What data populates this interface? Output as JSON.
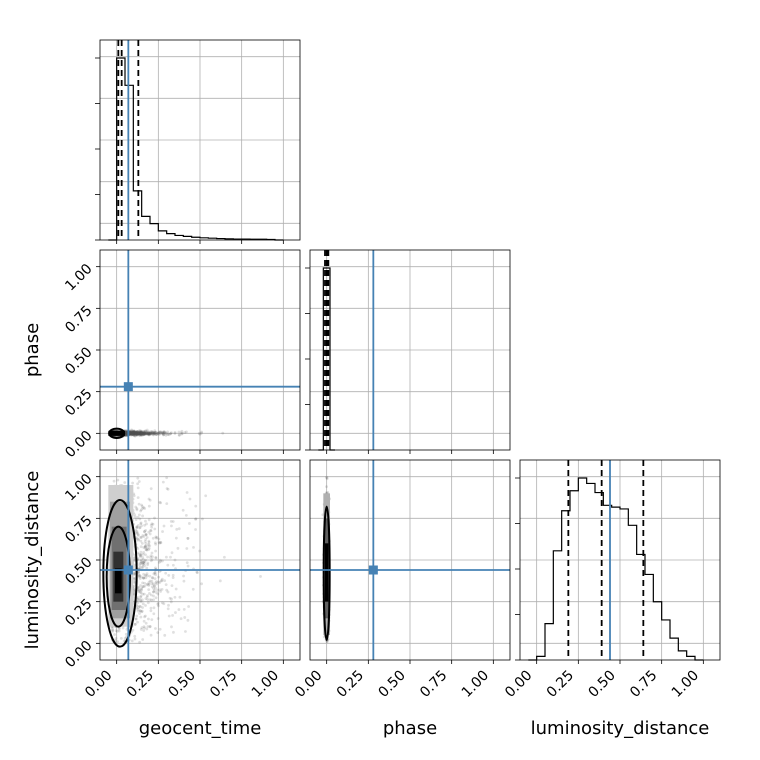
{
  "chart_data": {
    "type": "corner",
    "parameters": [
      "geocent_time",
      "phase",
      "luminosity_distance"
    ],
    "axis_range": [
      -0.1,
      1.1
    ],
    "ticks": [
      0.0,
      0.25,
      0.5,
      0.75,
      1.0
    ],
    "tick_labels": [
      "0.00",
      "0.25",
      "0.50",
      "0.75",
      "1.00"
    ],
    "grid": true,
    "colors": {
      "truth": "#4682b4",
      "histogram": "#000000",
      "quantile": "#000000",
      "density": "#000000"
    },
    "truths": {
      "geocent_time": 0.07,
      "phase": 0.28,
      "luminosity_distance": 0.44
    },
    "quantiles": {
      "geocent_time": [
        0.01,
        0.03,
        0.13
      ],
      "phase": [
        -0.01,
        0.0,
        0.01
      ],
      "luminosity_distance": [
        0.19,
        0.39,
        0.64
      ]
    },
    "histograms": {
      "geocent_time": {
        "edges": [
          -0.05,
          0.0,
          0.05,
          0.1,
          0.15,
          0.2,
          0.25,
          0.3,
          0.35,
          0.4,
          0.45,
          0.5,
          0.55,
          0.6,
          0.65,
          0.7,
          0.75,
          0.8,
          0.85,
          0.9,
          0.95,
          1.0
        ],
        "counts": [
          0.0,
          1.0,
          0.85,
          0.27,
          0.13,
          0.09,
          0.05,
          0.035,
          0.025,
          0.02,
          0.015,
          0.012,
          0.01,
          0.008,
          0.006,
          0.005,
          0.005,
          0.004,
          0.004,
          0.003,
          0.0
        ]
      },
      "phase": {
        "edges": [
          -0.05,
          -0.02,
          0.02,
          0.05
        ],
        "counts": [
          0.0,
          1.0,
          0.0
        ]
      },
      "luminosity_distance": {
        "edges": [
          -0.05,
          0.0,
          0.05,
          0.1,
          0.15,
          0.2,
          0.25,
          0.3,
          0.35,
          0.4,
          0.45,
          0.5,
          0.55,
          0.6,
          0.65,
          0.7,
          0.75,
          0.8,
          0.85,
          0.9,
          0.95,
          1.0
        ],
        "counts": [
          0.0,
          0.02,
          0.2,
          0.6,
          0.82,
          0.93,
          1.0,
          0.97,
          0.92,
          0.85,
          0.84,
          0.83,
          0.74,
          0.58,
          0.47,
          0.32,
          0.22,
          0.12,
          0.05,
          0.02,
          0.0
        ]
      }
    },
    "density": {
      "phase_vs_geocent_time": {
        "x_center": 0.0,
        "x_range": [
          -0.05,
          0.95
        ],
        "y_center": 0.0,
        "y_spread": 0.01
      },
      "luminosity_distance_vs_geocent_time": {
        "x_center": 0.0,
        "x_range": [
          -0.05,
          1.0
        ],
        "y_center": 0.4,
        "y_range": [
          0.0,
          1.0
        ]
      },
      "luminosity_distance_vs_phase": {
        "x_center": 0.0,
        "x_spread": 0.02,
        "y_center": 0.4,
        "y_range": [
          0.0,
          1.0
        ]
      }
    }
  }
}
